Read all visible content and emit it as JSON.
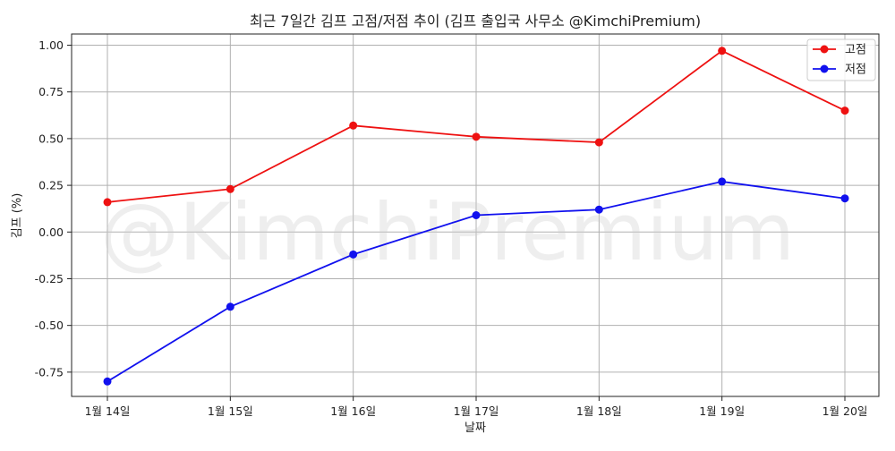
{
  "chart_data": {
    "type": "line",
    "title": "최근 7일간 김프 고점/저점 추이 (김프 출입국 사무소 @KimchiPremium)",
    "xlabel": "날짜",
    "ylabel": "김프 (%)",
    "watermark": "@KimchiPremium",
    "categories": [
      "1월 14일",
      "1월 15일",
      "1월 16일",
      "1월 17일",
      "1월 18일",
      "1월 19일",
      "1월 20일"
    ],
    "yticks": [
      "1.00",
      "0.75",
      "0.50",
      "0.25",
      "0.00",
      "-0.25",
      "-0.50",
      "-0.75"
    ],
    "ylim": [
      -0.88,
      1.06
    ],
    "grid": true,
    "legend_position": "top-right",
    "series": [
      {
        "name": "고점",
        "color": "#ee1111",
        "marker": "circle",
        "values": [
          0.16,
          0.23,
          0.57,
          0.51,
          0.48,
          0.97,
          0.65
        ]
      },
      {
        "name": "저점",
        "color": "#1111ee",
        "marker": "circle",
        "values": [
          -0.8,
          -0.4,
          -0.12,
          0.09,
          0.12,
          0.27,
          0.18
        ]
      }
    ]
  }
}
